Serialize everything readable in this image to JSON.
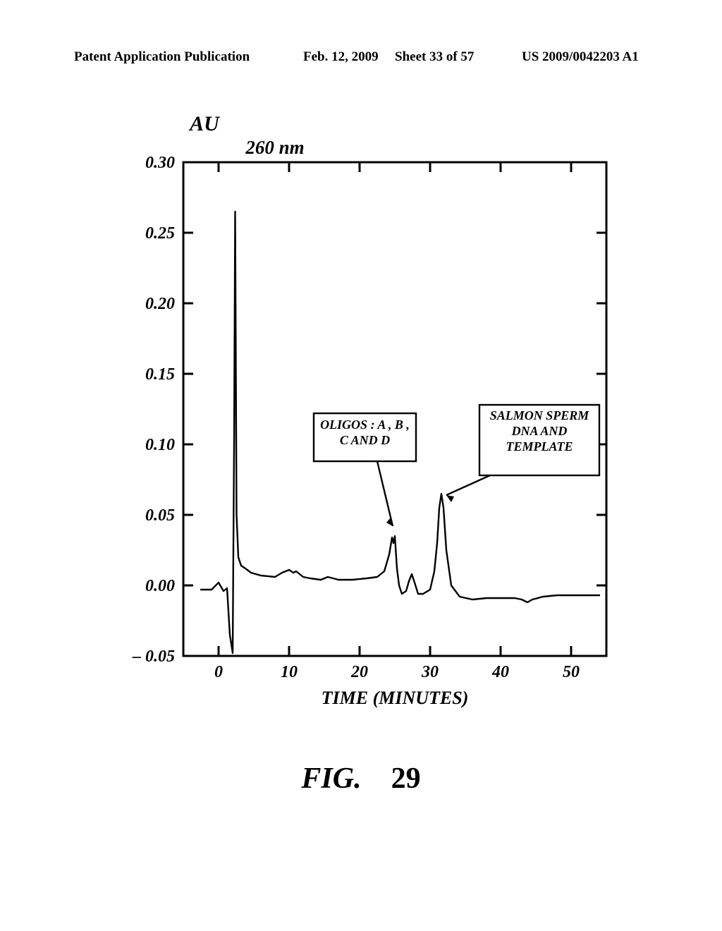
{
  "header": {
    "left": "Patent Application Publication",
    "mid": "Feb. 12, 2009",
    "sheet": "Sheet 33 of 57",
    "right": "US 2009/0042203 A1"
  },
  "figure": {
    "caption_prefix": "FIG.",
    "caption_num": "29",
    "au_label": "AU",
    "wavelength": "260 nm",
    "xaxis_label": "TIME  (MINUTES)",
    "ylim": [
      -0.05,
      0.3
    ],
    "xlim": [
      -5,
      55
    ],
    "yticks": [
      -0.05,
      0.0,
      0.05,
      0.1,
      0.15,
      0.2,
      0.25,
      0.3
    ],
    "ytick_labels": [
      "– 0.05",
      "0.00",
      "0.05",
      "0.10",
      "0.15",
      "0.20",
      "0.25",
      "0.30"
    ],
    "xticks": [
      0,
      10,
      20,
      30,
      40,
      50
    ],
    "xtick_labels": [
      "0",
      "10",
      "20",
      "30",
      "40",
      "50"
    ],
    "line_color": "#000000",
    "line_width": 2.4,
    "axis_width": 3,
    "tick_fontsize": 24,
    "label_fontsize": 26,
    "annot_fontsize": 18,
    "annot1_l1": "OLIGOS : A , B ,",
    "annot1_l2": "C AND D",
    "annot2_l1": "SALMON SPERM",
    "annot2_l2": "DNA AND",
    "annot2_l3": "TEMPLATE",
    "data": [
      [
        -2.5,
        -0.003
      ],
      [
        -1.0,
        -0.003
      ],
      [
        0.0,
        0.002
      ],
      [
        0.7,
        -0.004
      ],
      [
        1.2,
        -0.002
      ],
      [
        1.6,
        -0.035
      ],
      [
        2.0,
        -0.048
      ],
      [
        2.2,
        0.1
      ],
      [
        2.35,
        0.265
      ],
      [
        2.55,
        0.05
      ],
      [
        2.8,
        0.02
      ],
      [
        3.2,
        0.014
      ],
      [
        3.8,
        0.012
      ],
      [
        4.6,
        0.009
      ],
      [
        6.0,
        0.007
      ],
      [
        8.0,
        0.006
      ],
      [
        9.0,
        0.009
      ],
      [
        10.0,
        0.011
      ],
      [
        10.6,
        0.009
      ],
      [
        11.0,
        0.01
      ],
      [
        12.0,
        0.006
      ],
      [
        13.0,
        0.005
      ],
      [
        14.5,
        0.004
      ],
      [
        15.5,
        0.006
      ],
      [
        17.0,
        0.004
      ],
      [
        19.0,
        0.004
      ],
      [
        21.0,
        0.005
      ],
      [
        22.5,
        0.006
      ],
      [
        23.5,
        0.01
      ],
      [
        24.2,
        0.022
      ],
      [
        24.6,
        0.034
      ],
      [
        24.8,
        0.03
      ],
      [
        25.0,
        0.035
      ],
      [
        25.3,
        0.012
      ],
      [
        25.6,
        0.0
      ],
      [
        26.0,
        -0.006
      ],
      [
        26.6,
        -0.004
      ],
      [
        27.0,
        0.003
      ],
      [
        27.4,
        0.008
      ],
      [
        27.8,
        0.002
      ],
      [
        28.3,
        -0.006
      ],
      [
        29.0,
        -0.006
      ],
      [
        30.0,
        -0.003
      ],
      [
        30.6,
        0.01
      ],
      [
        31.0,
        0.03
      ],
      [
        31.3,
        0.055
      ],
      [
        31.6,
        0.065
      ],
      [
        31.9,
        0.055
      ],
      [
        32.3,
        0.025
      ],
      [
        33.0,
        0.0
      ],
      [
        34.2,
        -0.008
      ],
      [
        36.0,
        -0.01
      ],
      [
        38.0,
        -0.009
      ],
      [
        40.0,
        -0.009
      ],
      [
        42.0,
        -0.009
      ],
      [
        43.0,
        -0.01
      ],
      [
        43.8,
        -0.012
      ],
      [
        44.5,
        -0.01
      ],
      [
        46.0,
        -0.008
      ],
      [
        48.0,
        -0.007
      ],
      [
        50.0,
        -0.007
      ],
      [
        52.0,
        -0.007
      ],
      [
        54.0,
        -0.007
      ]
    ]
  }
}
